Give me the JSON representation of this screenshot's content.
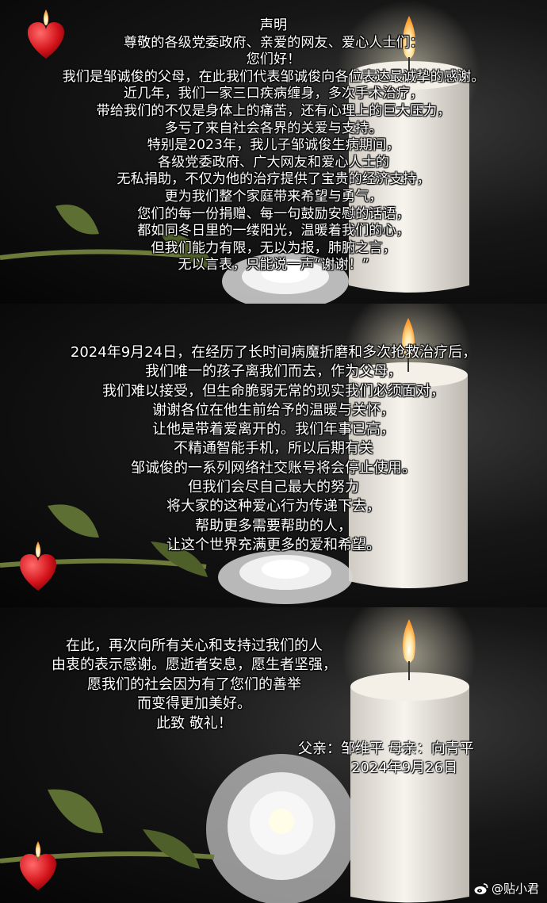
{
  "statement": {
    "title": "声明",
    "salutation": "尊敬的各级党委政府、亲爱的网友、爱心人士们：",
    "greeting": "您们好！",
    "paragraph_1": [
      "我们是邹诚俊的父母，在此我们代表邹诚俊向各位表达最诚挚的感谢。",
      "近几年，我们一家三口疾病缠身，多次手术治疗，",
      "带给我们的不仅是身体上的痛苦，还有心理上的巨大压力，",
      "多亏了来自社会各界的关爱与支持。",
      "特别是2023年，我儿子邹诚俊生病期间，",
      "各级党委政府、广大网友和爱心人士的",
      "无私捐助，不仅为他的治疗提供了宝贵的经济支持，",
      "更为我们整个家庭带来希望与勇气，",
      "您们的每一份捐赠、每一句鼓励安慰的话语，",
      "都如同冬日里的一缕阳光，温暖着我们的心，",
      "但我们能力有限，无以为报，肺腑之言，",
      "无以言表，只能说一声“谢谢！”"
    ],
    "paragraph_2": [
      "2024年9月24日，在经历了长时间病魔折磨和多次抢救治疗后，",
      "我们唯一的孩子离我们而去，作为父母，",
      "我们难以接受，但生命脆弱无常的现实我们必须面对，",
      "谢谢各位在他生前给予的温暖与关怀，",
      "让他是带着爱离开的。我们年事已高，",
      "不精通智能手机，所以后期有关",
      "邹诚俊的一系列网络社交账号将会停止使用。",
      "但我们会尽自己最大的努力",
      "将大家的这种爱心行为传递下去，",
      "帮助更多需要帮助的人，",
      "让这个世界充满更多的爱和希望。"
    ],
    "paragraph_3": [
      "在此，再次向所有关心和支持过我们的人",
      "由衷的表示感谢。愿逝者安息，愿生者坚强，",
      "愿我们的社会因为有了您们的善举",
      "而变得更加美好。",
      "此致 敬礼！"
    ],
    "signature": "父亲：邹维平   母亲：向青平",
    "date": "2024年9月26日"
  },
  "watermark": {
    "text": "@贴小君",
    "icon": "weibo-icon"
  },
  "colors": {
    "background": "#000000",
    "text": "#ffffff",
    "candle_wax": "#ece8e0",
    "flame": "#ffd36a",
    "heart": "#d4141c"
  }
}
